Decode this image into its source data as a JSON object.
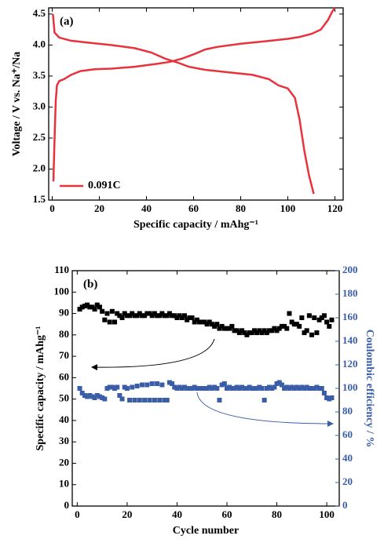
{
  "chart_data": [
    {
      "type": "line",
      "panel_label": "(a)",
      "x_label": "Specific capacity / mAhg⁻¹",
      "y_label": "Voltage / V vs. Na⁺/Na",
      "xlim": [
        -1.5,
        123.5
      ],
      "xticks": [
        0,
        20,
        40,
        60,
        80,
        100,
        120
      ],
      "ylim": [
        1.5,
        4.6
      ],
      "yticks": [
        1.5,
        {
          "value": 2,
          "label": "2.0"
        },
        2.5,
        {
          "value": 3,
          "label": "3.0"
        },
        3.5,
        {
          "value": 4,
          "label": "4.0"
        },
        4.5
      ],
      "series": [
        {
          "name": "0.091C",
          "color": "#e8323c",
          "x": [
            0.5,
            1,
            1.5,
            2,
            3,
            5,
            8,
            12,
            18,
            25,
            35,
            45,
            50,
            55,
            60,
            65,
            70,
            80,
            90,
            100,
            105,
            110,
            114,
            117,
            119,
            120
          ],
          "values": [
            1.8,
            2.5,
            3.1,
            3.35,
            3.42,
            3.45,
            3.52,
            3.58,
            3.61,
            3.62,
            3.65,
            3.7,
            3.73,
            3.78,
            3.85,
            3.93,
            3.97,
            4.02,
            4.06,
            4.1,
            4.13,
            4.18,
            4.25,
            4.4,
            4.55,
            4.6
          ]
        },
        {
          "color": "#e8323c",
          "x": [
            0.3,
            1,
            3,
            8,
            15,
            25,
            35,
            42,
            48,
            53,
            58,
            65,
            75,
            85,
            92,
            96,
            100,
            103,
            105,
            107,
            109,
            111
          ],
          "values": [
            4.5,
            4.2,
            4.12,
            4.07,
            4.04,
            4.0,
            3.95,
            3.88,
            3.78,
            3.72,
            3.65,
            3.6,
            3.56,
            3.52,
            3.45,
            3.35,
            3.3,
            3.15,
            2.8,
            2.3,
            1.9,
            1.6
          ]
        }
      ]
    },
    {
      "type": "scatter",
      "panel_label": "(b)",
      "x_label": "Cycle number",
      "y_label": "Specific capacity / mAhg⁻¹",
      "y2_label": "Coulombic efficiency / %",
      "xlim": [
        -2,
        105
      ],
      "xticks": [
        0,
        20,
        40,
        60,
        80,
        100
      ],
      "ylim": [
        0,
        110
      ],
      "yticks": [
        0,
        10,
        20,
        30,
        40,
        50,
        60,
        70,
        80,
        90,
        100,
        110
      ],
      "y2lim": [
        0,
        200
      ],
      "y2ticks": [
        0,
        20,
        40,
        60,
        80,
        100,
        120,
        140,
        160,
        180,
        200
      ],
      "x": [
        1,
        2,
        3,
        4,
        5,
        6,
        7,
        8,
        9,
        10,
        11,
        12,
        13,
        14,
        15,
        16,
        17,
        18,
        19,
        20,
        21,
        22,
        23,
        24,
        25,
        26,
        27,
        28,
        29,
        30,
        31,
        32,
        33,
        34,
        35,
        36,
        37,
        38,
        39,
        40,
        41,
        42,
        43,
        44,
        45,
        46,
        47,
        48,
        49,
        50,
        51,
        52,
        53,
        54,
        55,
        56,
        57,
        58,
        59,
        60,
        61,
        62,
        63,
        64,
        65,
        66,
        67,
        68,
        69,
        70,
        71,
        72,
        73,
        74,
        75,
        76,
        77,
        78,
        79,
        80,
        81,
        82,
        83,
        84,
        85,
        86,
        87,
        88,
        89,
        90,
        91,
        92,
        93,
        94,
        95,
        96,
        97,
        98,
        99,
        100,
        101,
        102
      ],
      "series": [
        {
          "color": "#000000",
          "values": [
            92,
            93,
            93.5,
            94,
            93,
            93,
            92,
            94,
            93,
            91,
            87,
            90,
            86,
            91,
            86,
            90,
            89,
            88,
            90,
            89,
            89,
            90,
            89,
            89,
            90,
            89,
            89,
            90,
            90,
            89,
            90,
            89,
            89,
            90,
            89,
            89,
            90,
            89,
            89,
            88,
            89,
            88,
            89,
            87,
            88,
            88,
            86,
            87,
            86,
            86,
            86,
            85,
            86,
            85,
            84,
            85,
            83,
            84,
            83,
            83,
            83,
            84,
            82,
            82,
            81,
            82,
            81,
            80,
            81,
            81,
            82,
            81,
            82,
            81,
            82,
            81,
            82,
            82,
            83,
            82,
            83,
            84,
            84,
            83,
            90,
            86,
            85,
            85,
            84,
            88,
            81,
            82,
            89,
            80,
            88,
            81,
            87,
            88,
            89,
            86,
            84,
            87
          ]
        },
        {
          "color": "#3a5da8",
          "axis": "y2",
          "values": [
            100,
            96,
            94,
            93,
            94,
            93,
            92,
            94,
            93,
            92,
            91,
            100,
            101,
            101,
            100,
            101,
            94,
            91,
            101,
            100,
            90,
            101,
            90,
            102,
            90,
            103,
            90,
            103,
            90,
            104,
            90,
            104,
            90,
            103,
            90,
            90,
            105,
            104,
            101,
            100,
            101,
            100,
            101,
            100,
            100,
            100,
            101,
            100,
            100,
            100,
            100,
            100,
            101,
            100,
            101,
            100,
            90,
            103,
            104,
            100,
            101,
            100,
            100,
            101,
            100,
            101,
            100,
            100,
            101,
            100,
            100,
            100,
            101,
            100,
            90,
            100,
            101,
            100,
            101,
            104,
            105,
            103,
            100,
            101,
            100,
            101,
            100,
            101,
            100,
            101,
            100,
            101,
            100,
            100,
            100,
            101,
            100,
            100,
            96,
            92,
            91,
            92
          ]
        }
      ]
    }
  ]
}
